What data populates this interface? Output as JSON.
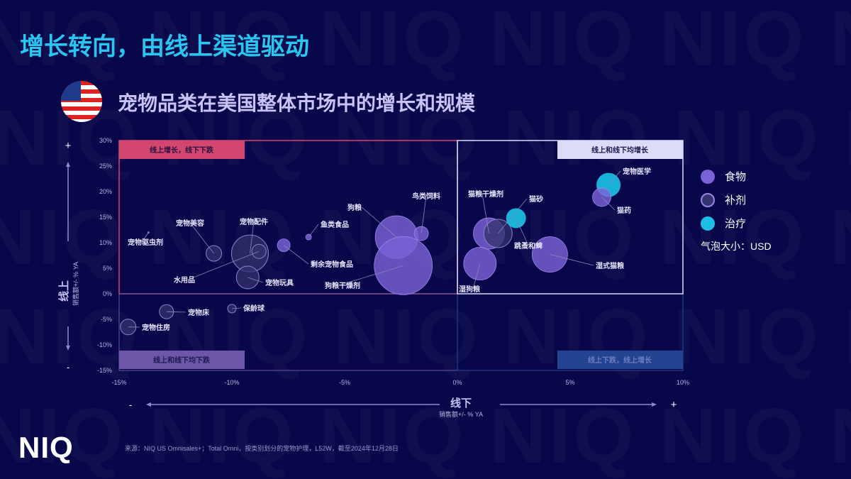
{
  "header": {
    "title": "增长转向，由线上渠道驱动",
    "subtitle": "宠物品类在美国整体市场中的增长和规模"
  },
  "watermark": "NIQ",
  "logo": "NIQ",
  "source": "来源：NIQ US Omnisales+；Total Omni，按类别划分的宠物护理，L52W，截至2024年12月28日",
  "legend": {
    "items": [
      {
        "label": "食物",
        "key": "food"
      },
      {
        "label": "补剂",
        "key": "supplement"
      },
      {
        "label": "治疗",
        "key": "treatment"
      }
    ],
    "size_note": "气泡大小：USD"
  },
  "colors": {
    "food": "#7b62d6",
    "supplement": "#33336e",
    "treatment": "#1bc0e4",
    "title": "#29c6ef",
    "q_tl": "#d2466f",
    "q_tr": "#dcdcf8",
    "q_bl": "#6d56a8",
    "q_br": "#22438f"
  },
  "chart_data": {
    "type": "scatter",
    "subtype": "bubble",
    "xlabel": "线下",
    "xlabel_sub": "销售额+/- % YA",
    "ylabel": "线上",
    "ylabel_sub": "销售额+/- % YA",
    "xlim": [
      -15,
      10
    ],
    "ylim": [
      -15,
      30
    ],
    "x_ticks": [
      -15,
      -10,
      -5,
      0,
      5,
      10
    ],
    "x_tick_labels": [
      "-15%",
      "-10%",
      "-5%",
      "0%",
      "5%",
      "10%"
    ],
    "y_ticks": [
      30,
      25,
      20,
      15,
      10,
      5,
      0,
      -5,
      -10,
      -15
    ],
    "y_tick_labels": [
      "30%",
      "25%",
      "20%",
      "15%",
      "10%",
      "5%",
      "0%",
      "-5%",
      "-10%",
      "-15%"
    ],
    "axis_minus": "-",
    "axis_plus": "+",
    "quadrants": {
      "top_left": "线上增长，线下下跌",
      "top_right": "线上和线下均增长",
      "bottom_left": "线上和线下均下跌",
      "bottom_right": "线上下跌，线上增长"
    },
    "points": [
      {
        "label": "宠物驱虫剂",
        "x": -13.7,
        "y": 12.0,
        "size": 1,
        "category": "supplement"
      },
      {
        "label": "宠物美容",
        "x": -10.8,
        "y": 7.9,
        "size": 121,
        "category": "supplement"
      },
      {
        "label": "宠物配件",
        "x": -9.2,
        "y": 7.9,
        "size": 676,
        "category": "supplement"
      },
      {
        "label": "水用品",
        "x": -8.8,
        "y": 8.3,
        "size": 100,
        "category": "supplement"
      },
      {
        "label": "宠物玩具",
        "x": -9.3,
        "y": 3.2,
        "size": 256,
        "category": "supplement"
      },
      {
        "label": "剩余宠物食品",
        "x": -7.7,
        "y": 9.5,
        "size": 81,
        "category": "food"
      },
      {
        "label": "鱼类食品",
        "x": -6.6,
        "y": 11.1,
        "size": 16,
        "category": "food"
      },
      {
        "label": "狗粮",
        "x": -2.7,
        "y": 11.1,
        "size": 900,
        "category": "food"
      },
      {
        "label": "鸟类饲料",
        "x": -1.6,
        "y": 11.8,
        "size": 100,
        "category": "food"
      },
      {
        "label": "狗粮干燥剂",
        "x": -2.4,
        "y": 5.5,
        "size": 1681,
        "category": "food"
      },
      {
        "label": "宠物床",
        "x": -12.9,
        "y": -3.5,
        "size": 100,
        "category": "supplement"
      },
      {
        "label": "保龄球",
        "x": -10.0,
        "y": -2.9,
        "size": 36,
        "category": "supplement"
      },
      {
        "label": "宠物住房",
        "x": -14.6,
        "y": -6.5,
        "size": 121,
        "category": "supplement"
      },
      {
        "label": "猫粮干燥剂",
        "x": 1.4,
        "y": 11.8,
        "size": 484,
        "category": "food"
      },
      {
        "label": "猫砂",
        "x": 1.8,
        "y": 11.8,
        "size": 400,
        "category": "supplement"
      },
      {
        "label": "跳蚤和蜱",
        "x": 2.6,
        "y": 14.8,
        "size": 196,
        "category": "treatment"
      },
      {
        "label": "湿狗粮",
        "x": 1.0,
        "y": 5.9,
        "size": 529,
        "category": "food"
      },
      {
        "label": "湿式猫粮",
        "x": 4.1,
        "y": 7.7,
        "size": 625,
        "category": "food"
      },
      {
        "label": "宠物医学",
        "x": 6.7,
        "y": 21.3,
        "size": 289,
        "category": "treatment"
      },
      {
        "label": "猫药",
        "x": 6.4,
        "y": 18.9,
        "size": 169,
        "category": "food"
      }
    ]
  }
}
